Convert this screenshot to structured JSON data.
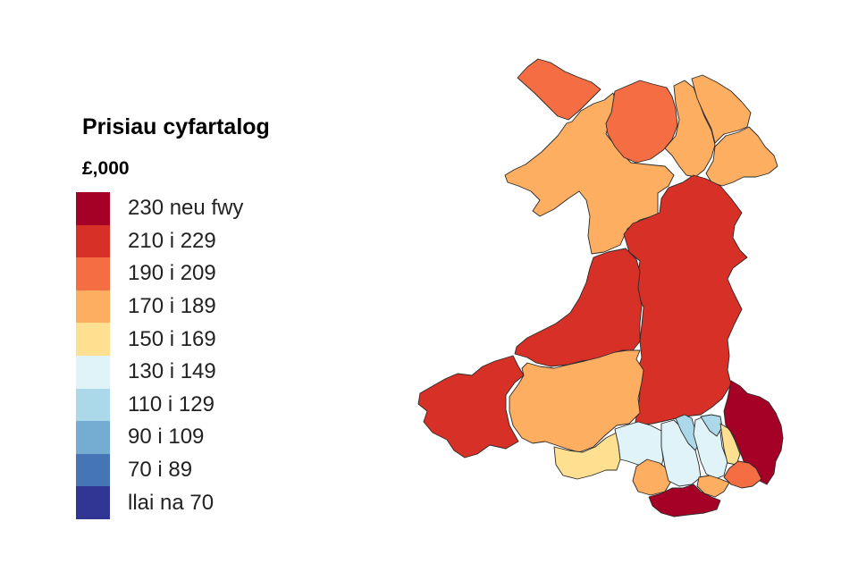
{
  "legend": {
    "title": "Prisiau cyfartalog",
    "unit": "£,000",
    "items": [
      {
        "label": "230 neu fwy",
        "color": "#a50026"
      },
      {
        "label": "210 i 229",
        "color": "#d73027"
      },
      {
        "label": "190 i 209",
        "color": "#f46d43"
      },
      {
        "label": "170 i 189",
        "color": "#fdae61"
      },
      {
        "label": "150 i 169",
        "color": "#fee090"
      },
      {
        "label": "130 i 149",
        "color": "#e0f3f8"
      },
      {
        "label": "110 i 129",
        "color": "#abd9e9"
      },
      {
        "label": "90 i 109",
        "color": "#74add1"
      },
      {
        "label": "70 i 89",
        "color": "#4575b4"
      },
      {
        "label": "llai na 70",
        "color": "#313695"
      }
    ]
  },
  "map": {
    "regions": [
      {
        "id": "isle-of-anglesey",
        "band": 2
      },
      {
        "id": "gwynedd",
        "band": 3
      },
      {
        "id": "conwy",
        "band": 2
      },
      {
        "id": "denbighshire",
        "band": 3
      },
      {
        "id": "flintshire",
        "band": 3
      },
      {
        "id": "wrexham",
        "band": 3
      },
      {
        "id": "powys",
        "band": 1
      },
      {
        "id": "ceredigion",
        "band": 1
      },
      {
        "id": "pembrokeshire",
        "band": 1
      },
      {
        "id": "carmarthenshire",
        "band": 3
      },
      {
        "id": "swansea",
        "band": 4
      },
      {
        "id": "neath-port-talbot",
        "band": 5
      },
      {
        "id": "rhondda-cynon-taf",
        "band": 5
      },
      {
        "id": "bridgend",
        "band": 3
      },
      {
        "id": "merthyr-tydfil",
        "band": 6
      },
      {
        "id": "caerphilly",
        "band": 5
      },
      {
        "id": "blaenau-gwent",
        "band": 6
      },
      {
        "id": "torfaen",
        "band": 4
      },
      {
        "id": "monmouthshire",
        "band": 0
      },
      {
        "id": "newport",
        "band": 2
      },
      {
        "id": "cardiff",
        "band": 3
      },
      {
        "id": "vale-of-glamorgan",
        "band": 0
      }
    ]
  }
}
